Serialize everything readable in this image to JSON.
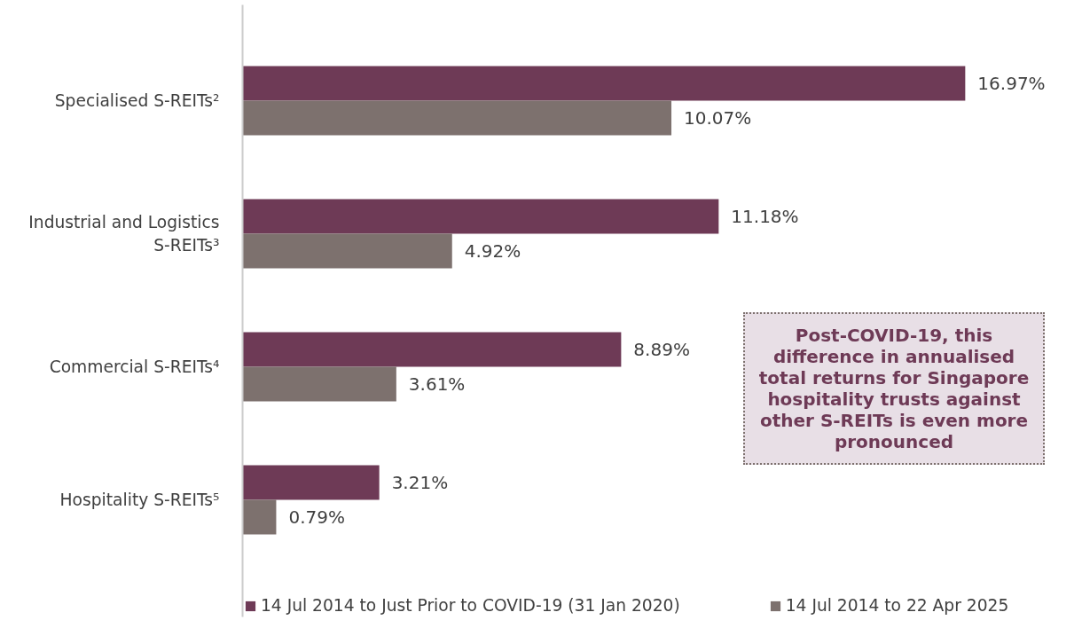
{
  "chart_data": {
    "type": "bar",
    "orientation": "horizontal",
    "categories": [
      "Specialised S-REITs²",
      "Industrial and Logistics S-REITs³",
      "Commercial S-REITs⁴",
      "Hospitality S-REITs⁵"
    ],
    "series": [
      {
        "name": "14 Jul 2014 to Just Prior to COVID-19 (31 Jan 2020)",
        "color": "#6e3a56",
        "values": [
          16.97,
          11.18,
          8.89,
          3.21
        ],
        "value_labels": [
          "16.97%",
          "11.18%",
          "8.89%",
          "3.21%"
        ]
      },
      {
        "name": "14 Jul 2014 to 22 Apr 2025",
        "color": "#7d716e",
        "values": [
          10.07,
          4.92,
          3.61,
          0.79
        ],
        "value_labels": [
          "10.07%",
          "4.92%",
          "3.61%",
          "0.79%"
        ]
      }
    ],
    "annotations": [
      "Post-COVID-19, this difference in annualised total returns for Singapore hospitality trusts against other S-REITs is even more pronounced"
    ],
    "legend": "bottom",
    "grid": false
  }
}
